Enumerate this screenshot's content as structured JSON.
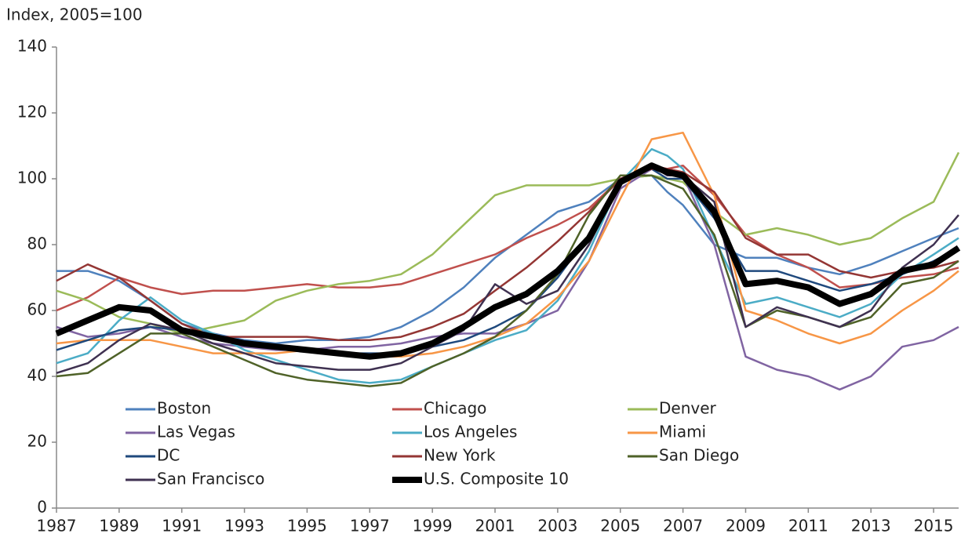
{
  "chart_data": {
    "type": "line",
    "y_axis_label": "Index, 2005=100",
    "x": [
      1987,
      1988,
      1989,
      1990,
      1991,
      1992,
      1993,
      1994,
      1995,
      1996,
      1997,
      1998,
      1999,
      2000,
      2001,
      2002,
      2003,
      2004,
      2005,
      2006,
      2006.5,
      2007,
      2008,
      2009,
      2010,
      2011,
      2012,
      2013,
      2014,
      2015,
      2015.8
    ],
    "xlim": [
      1987,
      2015.8
    ],
    "xticks": [
      1987,
      1989,
      1991,
      1993,
      1995,
      1997,
      1999,
      2001,
      2003,
      2005,
      2007,
      2009,
      2011,
      2013,
      2015
    ],
    "ylim": [
      0,
      140
    ],
    "yticks": [
      0,
      20,
      40,
      60,
      80,
      100,
      120,
      140
    ],
    "series": [
      {
        "name": "Boston",
        "color": "#4f81bd",
        "values": [
          72,
          72,
          69,
          63,
          56,
          53,
          51,
          50,
          51,
          51,
          52,
          55,
          60,
          67,
          76,
          83,
          90,
          93,
          100,
          101,
          96,
          92,
          80,
          76,
          76,
          73,
          71,
          74,
          78,
          82,
          85
        ]
      },
      {
        "name": "Chicago",
        "color": "#c0504d",
        "values": [
          60,
          64,
          70,
          67,
          65,
          66,
          66,
          67,
          68,
          67,
          67,
          68,
          71,
          74,
          77,
          82,
          86,
          91,
          100,
          104,
          103,
          104,
          95,
          83,
          77,
          73,
          67,
          68,
          70,
          71,
          73
        ]
      },
      {
        "name": "Denver",
        "color": "#9bbb59",
        "values": [
          66,
          63,
          58,
          56,
          53,
          55,
          57,
          63,
          66,
          68,
          69,
          71,
          77,
          86,
          95,
          98,
          98,
          98,
          100,
          101,
          100,
          99,
          90,
          83,
          85,
          83,
          80,
          82,
          88,
          93,
          108
        ]
      },
      {
        "name": "Las Vegas",
        "color": "#8064a2",
        "values": [
          55,
          52,
          53,
          55,
          52,
          50,
          49,
          48,
          48,
          49,
          49,
          50,
          52,
          53,
          53,
          56,
          60,
          75,
          97,
          103,
          102,
          101,
          80,
          46,
          42,
          40,
          36,
          40,
          49,
          51,
          55
        ]
      },
      {
        "name": "Los Angeles",
        "color": "#4bacc6",
        "values": [
          44,
          47,
          57,
          64,
          57,
          53,
          48,
          45,
          42,
          39,
          38,
          39,
          43,
          47,
          51,
          54,
          63,
          78,
          99,
          109,
          107,
          103,
          82,
          62,
          64,
          61,
          58,
          62,
          71,
          77,
          82
        ]
      },
      {
        "name": "Miami",
        "color": "#f79646",
        "values": [
          50,
          51,
          51,
          51,
          49,
          47,
          47,
          47,
          48,
          47,
          46,
          46,
          47,
          49,
          52,
          56,
          64,
          75,
          94,
          112,
          113,
          114,
          95,
          60,
          57,
          53,
          50,
          53,
          60,
          66,
          72
        ]
      },
      {
        "name": "DC",
        "color": "#1f497d",
        "values": [
          48,
          51,
          54,
          55,
          54,
          52,
          50,
          49,
          48,
          47,
          47,
          47,
          49,
          51,
          55,
          60,
          70,
          83,
          100,
          103,
          100,
          100,
          88,
          72,
          72,
          69,
          66,
          68,
          71,
          75,
          79
        ]
      },
      {
        "name": "New York",
        "color": "#943634",
        "values": [
          69,
          74,
          70,
          63,
          56,
          52,
          52,
          52,
          52,
          51,
          51,
          52,
          55,
          59,
          66,
          73,
          81,
          90,
          100,
          103,
          103,
          102,
          96,
          82,
          77,
          77,
          72,
          70,
          72,
          73,
          75
        ]
      },
      {
        "name": "San Diego",
        "color": "#4f6228",
        "values": [
          40,
          41,
          47,
          53,
          53,
          49,
          45,
          41,
          39,
          38,
          37,
          38,
          43,
          47,
          52,
          60,
          71,
          89,
          101,
          101,
          99,
          97,
          83,
          55,
          60,
          58,
          55,
          58,
          68,
          70,
          75
        ]
      },
      {
        "name": "San Francisco",
        "color": "#3f3151",
        "values": [
          41,
          44,
          51,
          56,
          54,
          50,
          47,
          44,
          43,
          42,
          42,
          44,
          49,
          54,
          68,
          62,
          66,
          80,
          99,
          104,
          101,
          101,
          93,
          55,
          61,
          58,
          55,
          60,
          73,
          80,
          89
        ]
      },
      {
        "name": "U.S. Composite 10",
        "color": "#000000",
        "width": 8,
        "values": [
          53,
          57,
          61,
          60,
          54,
          52,
          50,
          49,
          48,
          47,
          46,
          47,
          50,
          55,
          61,
          65,
          72,
          82,
          99,
          104,
          102,
          101,
          90,
          68,
          69,
          67,
          62,
          65,
          72,
          74,
          79
        ]
      }
    ]
  }
}
